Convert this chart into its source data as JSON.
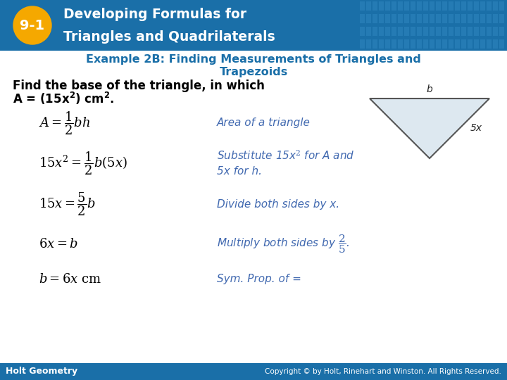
{
  "header_bg_color": "#1a6fa8",
  "badge_text": "9-1",
  "badge_bg": "#f5a800",
  "footer_left": "Holt Geometry",
  "footer_right": "Copyright © by Holt, Rinehart and Winston. All Rights Reserved.",
  "footer_bg": "#1a6fa8",
  "title_color": "#1a6fa8",
  "formula_color": "#000000",
  "desc_color": "#4169b0",
  "problem_bold_color": "#000000",
  "bg_color": "#ffffff"
}
